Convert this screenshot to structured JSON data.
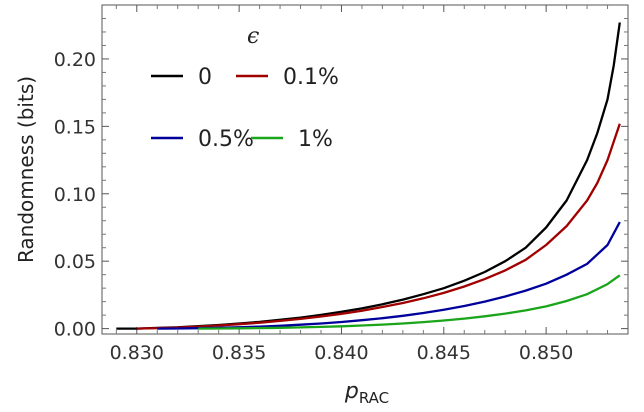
{
  "chart_data": {
    "type": "line",
    "xlabel": "p",
    "xlabel_sub": "RAC",
    "ylabel": "Randomness (bits)",
    "xlim": [
      0.8283,
      0.854
    ],
    "ylim": [
      -0.004,
      0.24
    ],
    "xticks": [
      0.83,
      0.835,
      0.84,
      0.845,
      0.85
    ],
    "yticks": [
      0.0,
      0.05,
      0.1,
      0.15,
      0.2
    ],
    "xtick_labels": [
      "0.830",
      "0.835",
      "0.840",
      "0.845",
      "0.850"
    ],
    "ytick_labels": [
      "0.00",
      "0.05",
      "0.10",
      "0.15",
      "0.20"
    ],
    "grid": false,
    "legend": {
      "title": "ϵ",
      "placement": "top-left",
      "entries": [
        "0",
        "0.1%",
        "0.5%",
        "1%"
      ]
    },
    "series": [
      {
        "name": "0",
        "color": "#000000",
        "x": [
          0.829,
          0.83,
          0.831,
          0.832,
          0.833,
          0.834,
          0.835,
          0.836,
          0.837,
          0.838,
          0.839,
          0.84,
          0.841,
          0.842,
          0.843,
          0.844,
          0.845,
          0.846,
          0.847,
          0.848,
          0.849,
          0.85,
          0.851,
          0.852,
          0.8525,
          0.853,
          0.8533,
          0.8536
        ],
        "y": [
          0.0,
          0.0,
          0.0005,
          0.001,
          0.0018,
          0.0027,
          0.0038,
          0.005,
          0.0065,
          0.0082,
          0.0102,
          0.0125,
          0.015,
          0.018,
          0.0215,
          0.0255,
          0.03,
          0.0355,
          0.042,
          0.05,
          0.06,
          0.075,
          0.095,
          0.125,
          0.145,
          0.17,
          0.195,
          0.227
        ]
      },
      {
        "name": "0.1%",
        "color": "#a00000",
        "x": [
          0.83,
          0.831,
          0.832,
          0.833,
          0.834,
          0.835,
          0.836,
          0.837,
          0.838,
          0.839,
          0.84,
          0.841,
          0.842,
          0.843,
          0.844,
          0.845,
          0.846,
          0.847,
          0.848,
          0.849,
          0.85,
          0.851,
          0.852,
          0.8525,
          0.853,
          0.8536
        ],
        "y": [
          0.0,
          0.0004,
          0.0008,
          0.0015,
          0.0023,
          0.0033,
          0.0044,
          0.0057,
          0.0072,
          0.009,
          0.011,
          0.0133,
          0.016,
          0.019,
          0.0225,
          0.0265,
          0.0312,
          0.0367,
          0.0432,
          0.051,
          0.062,
          0.076,
          0.095,
          0.108,
          0.125,
          0.152
        ]
      },
      {
        "name": "0.5%",
        "color": "#00009c",
        "x": [
          0.831,
          0.832,
          0.833,
          0.834,
          0.835,
          0.836,
          0.837,
          0.838,
          0.839,
          0.84,
          0.841,
          0.842,
          0.843,
          0.844,
          0.845,
          0.846,
          0.847,
          0.848,
          0.849,
          0.85,
          0.851,
          0.852,
          0.853,
          0.8536
        ],
        "y": [
          0.0,
          0.0001,
          0.0003,
          0.0006,
          0.001,
          0.0015,
          0.0021,
          0.0029,
          0.0038,
          0.0049,
          0.0062,
          0.0077,
          0.0095,
          0.0116,
          0.014,
          0.0168,
          0.02,
          0.0238,
          0.0282,
          0.0333,
          0.04,
          0.048,
          0.062,
          0.079
        ]
      },
      {
        "name": "1%",
        "color": "#1aa51a",
        "x": [
          0.833,
          0.834,
          0.835,
          0.836,
          0.837,
          0.838,
          0.839,
          0.84,
          0.841,
          0.842,
          0.843,
          0.844,
          0.845,
          0.846,
          0.847,
          0.848,
          0.849,
          0.85,
          0.851,
          0.852,
          0.853,
          0.8536
        ],
        "y": [
          0.0,
          0.0001,
          0.0002,
          0.0004,
          0.0006,
          0.0009,
          0.0013,
          0.0017,
          0.0023,
          0.003,
          0.0038,
          0.0048,
          0.006,
          0.0074,
          0.0091,
          0.0111,
          0.0135,
          0.0165,
          0.0205,
          0.0255,
          0.033,
          0.0395
        ]
      }
    ]
  }
}
